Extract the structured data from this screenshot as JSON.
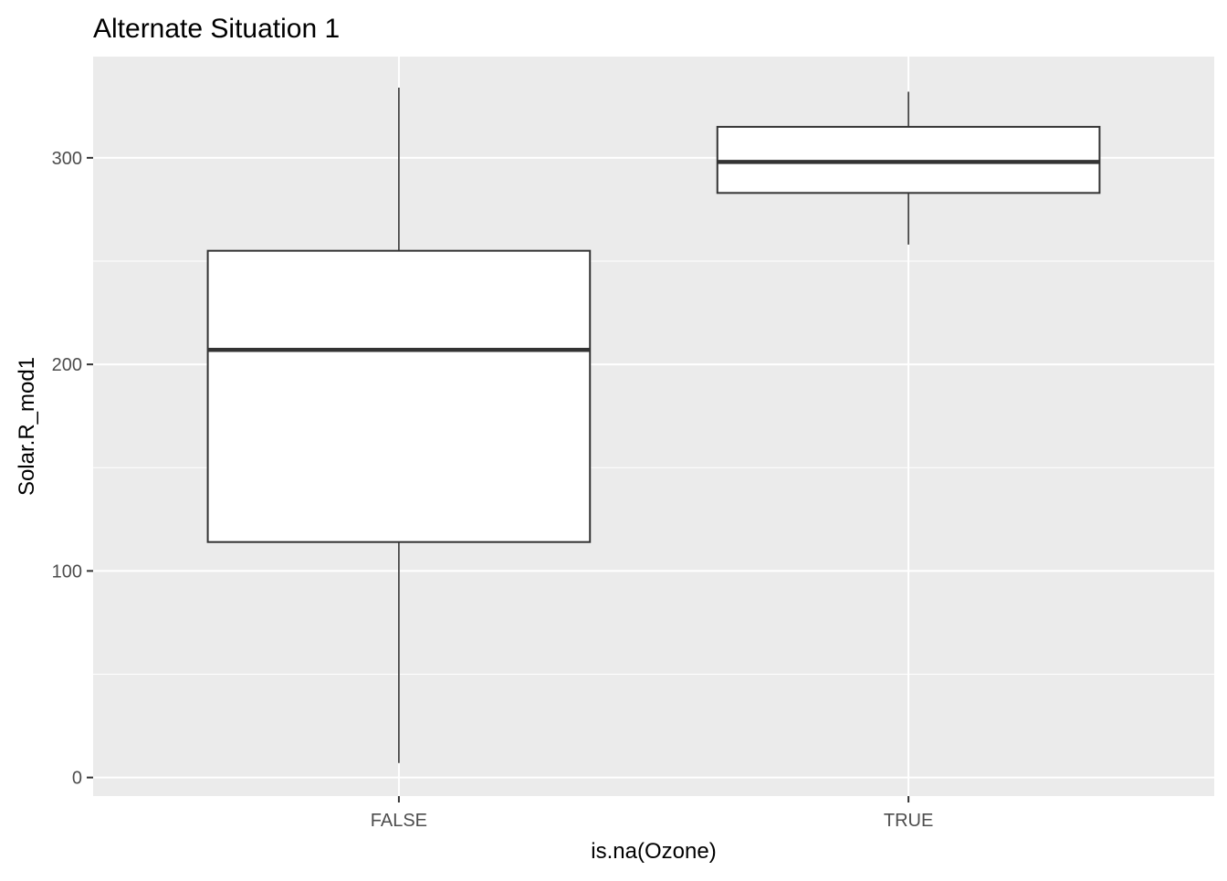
{
  "chart_data": {
    "type": "box",
    "title": "Alternate Situation 1",
    "xlabel": "is.na(Ozone)",
    "ylabel": "Solar.R_mod1",
    "categories": [
      "FALSE",
      "TRUE"
    ],
    "boxes": [
      {
        "category": "FALSE",
        "lower_whisker": 7,
        "q1": 114,
        "median": 207,
        "q3": 255,
        "upper_whisker": 334
      },
      {
        "category": "TRUE",
        "lower_whisker": 258,
        "q1": 283,
        "median": 298,
        "q3": 315,
        "upper_whisker": 332
      }
    ],
    "ylim": [
      -9,
      349
    ],
    "y_major_ticks": [
      0,
      100,
      200,
      300
    ],
    "y_tick_labels": [
      "0",
      "100",
      "200",
      "300"
    ],
    "y_minor_ticks": [
      50,
      150,
      250
    ],
    "grid": true,
    "colors": {
      "panel_background": "#ebebeb",
      "grid": "#ffffff",
      "box_fill": "#ffffff",
      "box_stroke": "#333333",
      "tick_text": "#4d4d4d",
      "tick_mark": "#333333"
    }
  }
}
